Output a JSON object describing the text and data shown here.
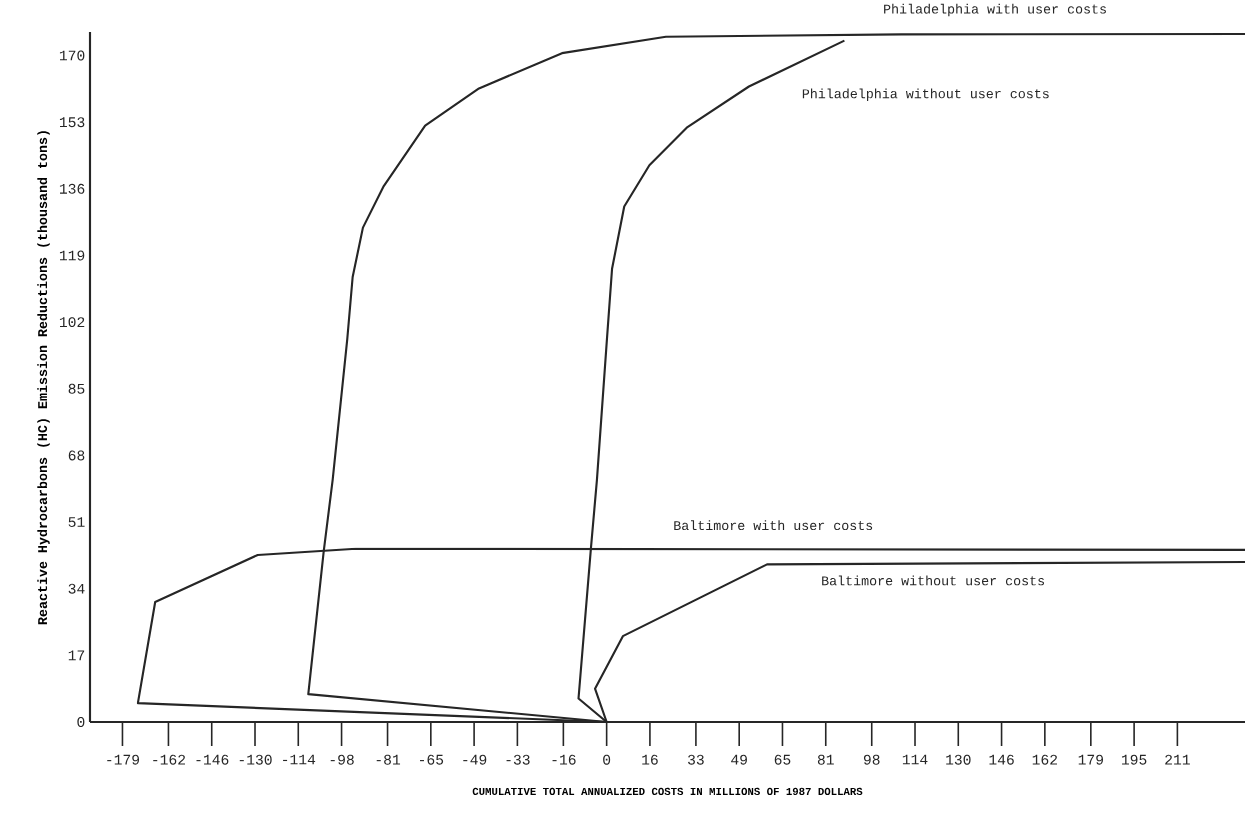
{
  "chart_data": {
    "type": "line",
    "xlabel": "CUMULATIVE TOTAL ANNUALIZED COSTS IN MILLIONS OF 1987 DOLLARS",
    "ylabel": "Reactive Hydrocarbons (HC) Emission Reductions (thousand tons)",
    "xlim": [
      -191,
      236
    ],
    "ylim": [
      0,
      176
    ],
    "xticks": [
      -179,
      -162,
      -146,
      -130,
      -114,
      -98,
      -81,
      -65,
      -49,
      -33,
      -16,
      0,
      16,
      33,
      49,
      65,
      81,
      98,
      114,
      130,
      146,
      162,
      179,
      195,
      211
    ],
    "yticks": [
      0,
      17,
      34,
      51,
      68,
      85,
      102,
      119,
      136,
      153,
      170
    ],
    "series": [
      {
        "name": "Philadelphia with user costs",
        "color": "#262626",
        "x": [
          0,
          -110.3,
          -104.6,
          -101.3,
          -95.9,
          -93.9,
          -90.1,
          -82.4,
          -67.1,
          -47.2,
          -16.5,
          21.9,
          109,
          236
        ],
        "values": [
          0,
          7.1,
          43.5,
          61.7,
          97.6,
          113.5,
          126.1,
          136.7,
          152.1,
          161.6,
          170.6,
          174.8,
          175.4,
          175.5
        ]
      },
      {
        "name": "Philadelphia without user costs",
        "color": "#262626",
        "x": [
          0,
          -10.4,
          -5.8,
          -3.6,
          0.1,
          2,
          6.5,
          15.8,
          29.6,
          52.6,
          87.9
        ],
        "values": [
          0,
          6,
          44.4,
          61.7,
          97.6,
          115.6,
          131.5,
          142,
          151.6,
          162.1,
          173.8
        ]
      },
      {
        "name": "Baltimore with user costs",
        "color": "#262626",
        "x": [
          0,
          -173.3,
          -166.9,
          -129,
          -92.7,
          236
        ],
        "values": [
          0,
          4.8,
          30.6,
          42.6,
          44.2,
          43.9
        ]
      },
      {
        "name": "Baltimore without user costs",
        "color": "#262626",
        "x": [
          0,
          -4.3,
          6,
          59.3,
          236
        ],
        "values": [
          0,
          8.5,
          21.9,
          40.2,
          40.8
        ]
      }
    ],
    "grid": false,
    "legend": false,
    "marker": "none",
    "line_style": "solid"
  }
}
